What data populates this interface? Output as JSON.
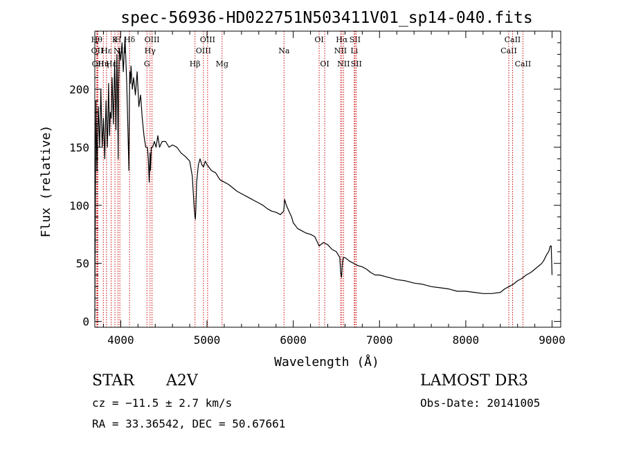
{
  "chart_data": {
    "type": "line",
    "title": "spec-56936-HD022751N503411V01_sp14-040.fits",
    "xlabel": "Wavelength (Å)",
    "ylabel": "Flux (relative)",
    "xlim": [
      3700,
      9100
    ],
    "ylim": [
      -5,
      250
    ],
    "xticks": [
      4000,
      5000,
      6000,
      7000,
      8000,
      9000
    ],
    "yticks": [
      0,
      50,
      100,
      150,
      200
    ],
    "line_color": "#000000",
    "marker_color": "#cc0000",
    "grid": false,
    "series": [
      {
        "x": [
          3700,
          3712,
          3725,
          3740,
          3755,
          3770,
          3785,
          3800,
          3815,
          3830,
          3845,
          3860,
          3870,
          3880,
          3890,
          3900,
          3915,
          3930,
          3945,
          3955,
          3965,
          3970,
          3975,
          3985,
          4000,
          4015,
          4030,
          4050,
          4070,
          4085,
          4095,
          4100,
          4105,
          4112,
          4120,
          4135,
          4150,
          4170,
          4190,
          4210,
          4230,
          4250,
          4270,
          4290,
          4310,
          4320,
          4330,
          4340,
          4345,
          4355,
          4370,
          4390,
          4410,
          4430,
          4450,
          4480,
          4520,
          4560,
          4600,
          4650,
          4700,
          4750,
          4800,
          4830,
          4850,
          4860,
          4865,
          4870,
          4880,
          4900,
          4920,
          4940,
          4960,
          4980,
          5000,
          5050,
          5100,
          5150,
          5200,
          5250,
          5300,
          5350,
          5400,
          5450,
          5500,
          5550,
          5600,
          5650,
          5700,
          5750,
          5800,
          5850,
          5890,
          5900,
          5920,
          5950,
          5980,
          6000,
          6050,
          6100,
          6150,
          6200,
          6250,
          6300,
          6350,
          6400,
          6450,
          6500,
          6540,
          6550,
          6560,
          6565,
          6570,
          6580,
          6600,
          6650,
          6700,
          6750,
          6800,
          6850,
          6900,
          6950,
          7000,
          7100,
          7200,
          7300,
          7400,
          7500,
          7600,
          7700,
          7800,
          7900,
          8000,
          8100,
          8200,
          8300,
          8400,
          8450,
          8500,
          8550,
          8600,
          8650,
          8700,
          8750,
          8800,
          8850,
          8880,
          8900,
          8920,
          8940,
          8960,
          8980,
          8990,
          9000
        ],
        "y": [
          2,
          190,
          130,
          185,
          150,
          200,
          150,
          175,
          140,
          190,
          150,
          205,
          160,
          180,
          175,
          210,
          170,
          225,
          165,
          230,
          185,
          140,
          200,
          235,
          225,
          240,
          215,
          245,
          205,
          160,
          130,
          190,
          215,
          205,
          220,
          200,
          210,
          195,
          215,
          185,
          195,
          175,
          160,
          150,
          150,
          140,
          120,
          145,
          130,
          150,
          150,
          155,
          150,
          160,
          150,
          155,
          155,
          150,
          152,
          150,
          145,
          142,
          138,
          125,
          100,
          90,
          88,
          95,
          120,
          135,
          140,
          135,
          133,
          138,
          135,
          130,
          128,
          122,
          120,
          118,
          115,
          112,
          110,
          108,
          106,
          104,
          102,
          100,
          97,
          95,
          94,
          92,
          95,
          105,
          100,
          95,
          90,
          85,
          80,
          78,
          76,
          75,
          73,
          65,
          68,
          66,
          62,
          60,
          55,
          42,
          38,
          45,
          50,
          55,
          55,
          52,
          50,
          48,
          47,
          45,
          42,
          40,
          40,
          38,
          36,
          35,
          33,
          32,
          30,
          29,
          28,
          26,
          26,
          25,
          24,
          24,
          25,
          28,
          30,
          32,
          35,
          37,
          40,
          42,
          45,
          48,
          50,
          52,
          55,
          58,
          60,
          65,
          65,
          40
        ]
      }
    ],
    "line_markers": [
      {
        "x": 3722,
        "row": 1,
        "label": "Hθ"
      },
      {
        "x": 3728,
        "row": 2,
        "label": "OII"
      },
      {
        "x": 3736,
        "row": 3,
        "label": "OII"
      },
      {
        "x": 3798,
        "row": 3,
        "label": "Hη"
      },
      {
        "x": 3835,
        "row": 2,
        "label": "Hε"
      },
      {
        "x": 3889,
        "row": 3,
        "label": "Hε"
      },
      {
        "x": 3933,
        "row": 1,
        "label": "K"
      },
      {
        "x": 3969,
        "row": 1,
        "label": "H"
      },
      {
        "x": 3990,
        "row": 2,
        "label": "NII"
      },
      {
        "x": 4102,
        "row": 1,
        "label": "Hδ"
      },
      {
        "x": 4304,
        "row": 3,
        "label": "G"
      },
      {
        "x": 4340,
        "row": 2,
        "label": "Hγ"
      },
      {
        "x": 4363,
        "row": 1,
        "label": "OIII"
      },
      {
        "x": 4861,
        "row": 3,
        "label": "Hβ"
      },
      {
        "x": 4959,
        "row": 2,
        "label": "OIII"
      },
      {
        "x": 5007,
        "row": 1,
        "label": "OIII"
      },
      {
        "x": 5175,
        "row": 3,
        "label": "Mg"
      },
      {
        "x": 5893,
        "row": 2,
        "label": "Na"
      },
      {
        "x": 6300,
        "row": 1,
        "label": "OI"
      },
      {
        "x": 6364,
        "row": 3,
        "label": "OI"
      },
      {
        "x": 6548,
        "row": 2,
        "label": "NII"
      },
      {
        "x": 6563,
        "row": 1,
        "label": "Hα"
      },
      {
        "x": 6583,
        "row": 3,
        "label": "NII"
      },
      {
        "x": 6707,
        "row": 2,
        "label": "Li"
      },
      {
        "x": 6716,
        "row": 1,
        "label": "SII"
      },
      {
        "x": 6731,
        "row": 3,
        "label": "SII"
      },
      {
        "x": 8498,
        "row": 2,
        "label": "CaII"
      },
      {
        "x": 8542,
        "row": 1,
        "label": "CaII"
      },
      {
        "x": 8662,
        "row": 3,
        "label": "CaII"
      }
    ]
  },
  "info": {
    "object_class": "STAR",
    "subclass": "A2V",
    "survey": "LAMOST DR3",
    "redshift": "cz = −11.5 ± 2.7 km/s",
    "obs_date": "Obs-Date: 20141005",
    "coords": "RA =  33.36542, DEC =  50.67661"
  }
}
